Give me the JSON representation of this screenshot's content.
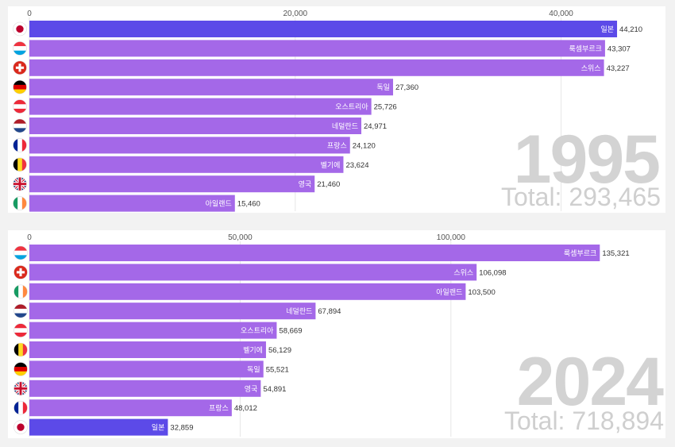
{
  "colors": {
    "bar": "#a468e8",
    "highlight": "#5c4ae8",
    "grid": "#e6e6e6",
    "axis_text": "#555555",
    "value_text": "#333333",
    "big_text": "#d3d3d3"
  },
  "chart_data": [
    {
      "type": "bar",
      "orientation": "horizontal",
      "year": "1995",
      "total_label": "Total: 293,465",
      "xlim": [
        0,
        46000
      ],
      "ticks": [
        0,
        20000,
        40000
      ],
      "tick_labels": [
        "0",
        "20,000",
        "40,000"
      ],
      "highlight": "일본",
      "bars": [
        {
          "label": "일본",
          "value": 44210,
          "value_label": "44,210",
          "flag": "japan-flag"
        },
        {
          "label": "룩셈부르크",
          "value": 43307,
          "value_label": "43,307",
          "flag": "luxembourg-flag"
        },
        {
          "label": "스위스",
          "value": 43227,
          "value_label": "43,227",
          "flag": "switzerland-flag"
        },
        {
          "label": "독일",
          "value": 27360,
          "value_label": "27,360",
          "flag": "germany-flag"
        },
        {
          "label": "오스트리아",
          "value": 25726,
          "value_label": "25,726",
          "flag": "austria-flag"
        },
        {
          "label": "네덜란드",
          "value": 24971,
          "value_label": "24,971",
          "flag": "netherlands-flag"
        },
        {
          "label": "프랑스",
          "value": 24120,
          "value_label": "24,120",
          "flag": "france-flag"
        },
        {
          "label": "벨기에",
          "value": 23624,
          "value_label": "23,624",
          "flag": "belgium-flag"
        },
        {
          "label": "영국",
          "value": 21460,
          "value_label": "21,460",
          "flag": "uk-flag"
        },
        {
          "label": "아일랜드",
          "value": 15460,
          "value_label": "15,460",
          "flag": "ireland-flag"
        }
      ]
    },
    {
      "type": "bar",
      "orientation": "horizontal",
      "year": "2024",
      "total_label": "Total: 718,894",
      "xlim": [
        0,
        146000
      ],
      "ticks": [
        0,
        50000,
        100000
      ],
      "tick_labels": [
        "0",
        "50,000",
        "100,000"
      ],
      "highlight": "일본",
      "bars": [
        {
          "label": "룩셈부르크",
          "value": 135321,
          "value_label": "135,321",
          "flag": "luxembourg-flag"
        },
        {
          "label": "스위스",
          "value": 106098,
          "value_label": "106,098",
          "flag": "switzerland-flag"
        },
        {
          "label": "아일랜드",
          "value": 103500,
          "value_label": "103,500",
          "flag": "ireland-flag"
        },
        {
          "label": "네덜란드",
          "value": 67894,
          "value_label": "67,894",
          "flag": "netherlands-flag"
        },
        {
          "label": "오스트리아",
          "value": 58669,
          "value_label": "58,669",
          "flag": "austria-flag"
        },
        {
          "label": "벨기에",
          "value": 56129,
          "value_label": "56,129",
          "flag": "belgium-flag"
        },
        {
          "label": "독일",
          "value": 55521,
          "value_label": "55,521",
          "flag": "germany-flag"
        },
        {
          "label": "영국",
          "value": 54891,
          "value_label": "54,891",
          "flag": "uk-flag"
        },
        {
          "label": "프랑스",
          "value": 48012,
          "value_label": "48,012",
          "flag": "france-flag"
        },
        {
          "label": "일본",
          "value": 32859,
          "value_label": "32,859",
          "flag": "japan-flag"
        }
      ]
    }
  ]
}
